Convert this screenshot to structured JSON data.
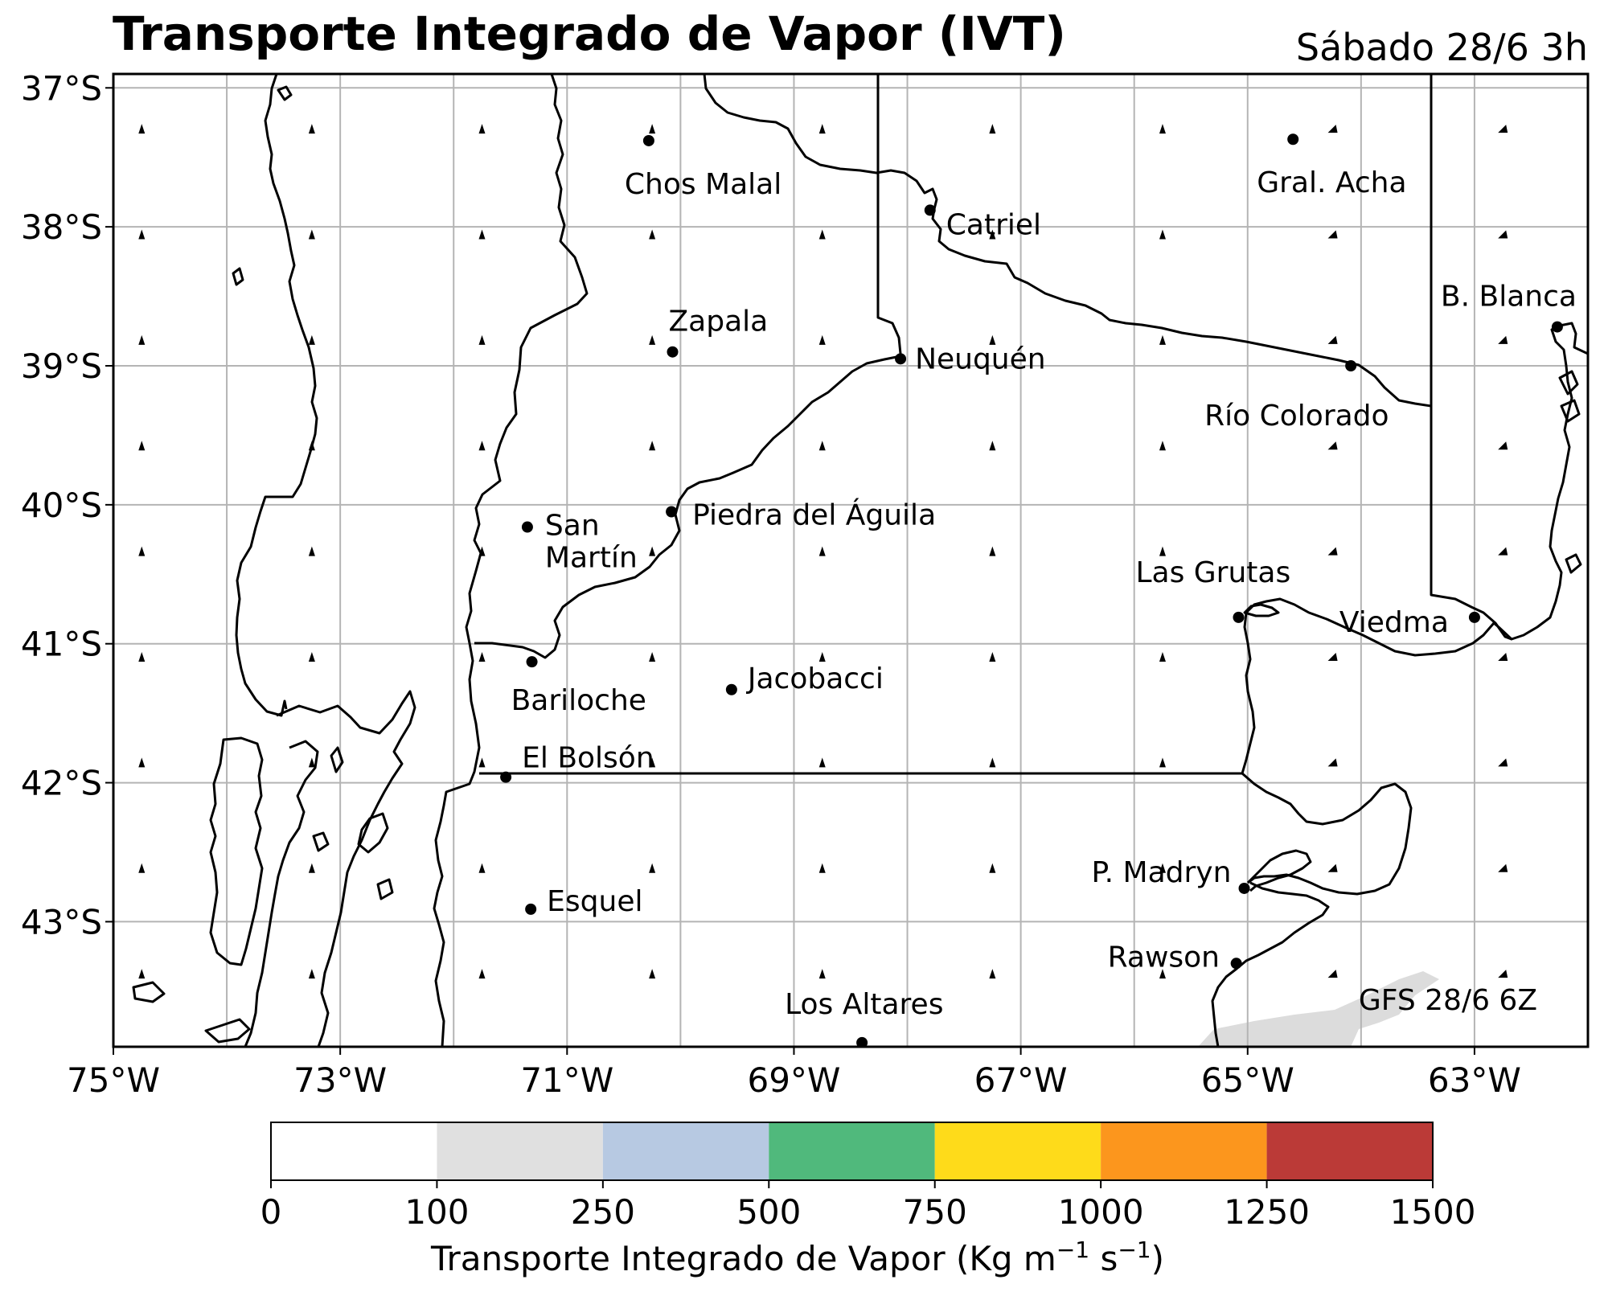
{
  "header": {
    "title": "Transporte Integrado de Vapor (IVT)",
    "valid_time": "Sábado 28/6 3h"
  },
  "map": {
    "lat_ticks": [
      "37°S",
      "38°S",
      "39°S",
      "40°S",
      "41°S",
      "42°S",
      "43°S"
    ],
    "lon_ticks": [
      "75°W",
      "73°W",
      "71°W",
      "69°W",
      "67°W",
      "65°W",
      "63°W"
    ],
    "extent": {
      "lon_min": -75,
      "lon_max": -62,
      "lat_min": -43.9,
      "lat_max": -36.9
    },
    "gridlines": true,
    "model_run": "GFS 28/6 6Z",
    "cities": [
      {
        "name": "Chos Malal",
        "lon": -70.28,
        "lat": -37.38
      },
      {
        "name": "Gral. Acha",
        "lon": -64.6,
        "lat": -37.37
      },
      {
        "name": "Catriel",
        "lon": -67.8,
        "lat": -37.88
      },
      {
        "name": "B. Blanca",
        "lon": -62.27,
        "lat": -38.72
      },
      {
        "name": "Zapala",
        "lon": -70.07,
        "lat": -38.9
      },
      {
        "name": "Neuquén",
        "lon": -68.06,
        "lat": -38.95
      },
      {
        "name": "Río Colorado",
        "lon": -64.09,
        "lat": -39.0
      },
      {
        "name": "San Martín",
        "lon": -71.35,
        "lat": -40.16
      },
      {
        "name": "Piedra del Águila",
        "lon": -70.08,
        "lat": -40.05
      },
      {
        "name": "Las Grutas",
        "lon": -65.08,
        "lat": -40.81
      },
      {
        "name": "Viedma",
        "lon": -63.0,
        "lat": -40.81
      },
      {
        "name": "Bariloche",
        "lon": -71.31,
        "lat": -41.13
      },
      {
        "name": "Jacobacci",
        "lon": -69.55,
        "lat": -41.33
      },
      {
        "name": "El Bolsón",
        "lon": -71.54,
        "lat": -41.96
      },
      {
        "name": "P. Madryn",
        "lon": -65.03,
        "lat": -42.76
      },
      {
        "name": "Esquel",
        "lon": -71.32,
        "lat": -42.91
      },
      {
        "name": "Rawson",
        "lon": -65.1,
        "lat": -43.3
      },
      {
        "name": "Los Altares",
        "lon": -68.4,
        "lat": -43.87
      }
    ]
  },
  "colorbar": {
    "label_main": "Transporte Integrado de Vapor (Kg m",
    "label_exp1": "−1",
    "label_mid": " s",
    "label_exp2": "−1",
    "label_end": ")",
    "ticks": [
      "0",
      "100",
      "250",
      "500",
      "750",
      "1000",
      "1250",
      "1500"
    ],
    "colors": [
      "#ffffff",
      "#e0e0e0",
      "#b7c9e2",
      "#50b97c",
      "#fedb1a",
      "#fc961d",
      "#bb3a37"
    ]
  },
  "chart_data": {
    "type": "heatmap",
    "title": "Transporte Integrado de Vapor (IVT)",
    "subtitle": "Sábado 28/6 3h",
    "xlabel": "",
    "ylabel": "",
    "xlim": [
      -75,
      -62
    ],
    "ylim": [
      -43.9,
      -36.9
    ],
    "colorbar_levels": [
      0,
      100,
      250,
      500,
      750,
      1000,
      1250,
      1500
    ],
    "colorbar_label": "Transporte Integrado de Vapor (Kg m−1 s−1)",
    "note": "GFS 28/6 6Z"
  }
}
